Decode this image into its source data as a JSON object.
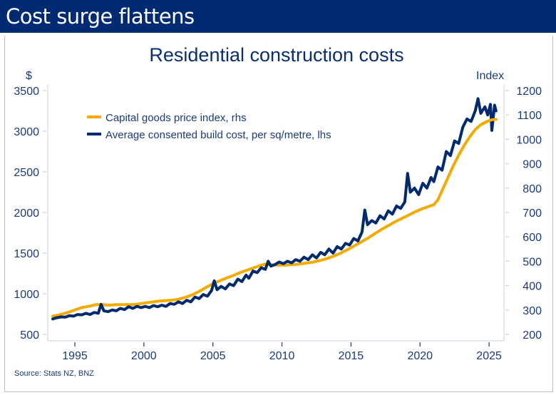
{
  "banner": {
    "title": "Cost surge flattens"
  },
  "colors": {
    "banner": "#002b73",
    "gold": "#f2ab00",
    "navy": "#002a6e",
    "axis": "#c8d0dc",
    "text": "#1a3a78"
  },
  "source": "Source: Stats NZ, BNZ",
  "chart_data": {
    "type": "line",
    "title": "Residential construction costs",
    "xlabel": "",
    "ylabel_left": "$",
    "ylabel_right": "Index",
    "x_range": [
      1993.0,
      2026.2
    ],
    "x_ticks": [
      1995,
      2000,
      2005,
      2010,
      2015,
      2020,
      2025
    ],
    "x_tick_labels": [
      "1995",
      "2000",
      "2005",
      "2010",
      "2015",
      "2020",
      "2025"
    ],
    "ylim_left": [
      500,
      3500
    ],
    "y_ticks_left": [
      500,
      1000,
      1500,
      2000,
      2500,
      3000,
      3500
    ],
    "y_tick_labels_left": [
      "500",
      "1000",
      "1500",
      "2000",
      "2500",
      "3000",
      "3500"
    ],
    "ylim_right": [
      200,
      1200
    ],
    "y_ticks_right": [
      200,
      300,
      400,
      500,
      600,
      700,
      800,
      900,
      1000,
      1100,
      1200
    ],
    "y_tick_labels_right": [
      "200",
      "300",
      "400",
      "500",
      "600",
      "700",
      "800",
      "900",
      "1000",
      "1100",
      "1200"
    ],
    "grid": false,
    "legend": {
      "placement": "top-left",
      "entries": [
        "Capital goods price index, rhs",
        "Average consented build cost, per sq/metre, lhs"
      ]
    },
    "series": [
      {
        "name": "Capital goods price index, rhs",
        "axis": "right",
        "color": "#f2ab00",
        "points": [
          [
            1993.4,
            275
          ],
          [
            1994.0,
            282
          ],
          [
            1994.5,
            290
          ],
          [
            1995.0,
            300
          ],
          [
            1995.5,
            310
          ],
          [
            1996.0,
            315
          ],
          [
            1996.5,
            322
          ],
          [
            1997.0,
            322
          ],
          [
            1997.5,
            320
          ],
          [
            1998.0,
            322
          ],
          [
            1998.5,
            322
          ],
          [
            1999.0,
            322
          ],
          [
            1999.5,
            324
          ],
          [
            2000.0,
            328
          ],
          [
            2000.5,
            332
          ],
          [
            2001.0,
            336
          ],
          [
            2001.5,
            338
          ],
          [
            2002.0,
            340
          ],
          [
            2002.5,
            344
          ],
          [
            2003.0,
            352
          ],
          [
            2003.5,
            362
          ],
          [
            2004.0,
            376
          ],
          [
            2004.5,
            392
          ],
          [
            2005.0,
            408
          ],
          [
            2005.5,
            420
          ],
          [
            2006.0,
            432
          ],
          [
            2006.5,
            442
          ],
          [
            2007.0,
            454
          ],
          [
            2007.5,
            464
          ],
          [
            2008.0,
            474
          ],
          [
            2008.5,
            484
          ],
          [
            2008.8,
            488
          ],
          [
            2009.2,
            486
          ],
          [
            2009.7,
            484
          ],
          [
            2010.2,
            484
          ],
          [
            2010.7,
            486
          ],
          [
            2011.2,
            488
          ],
          [
            2011.7,
            492
          ],
          [
            2012.2,
            496
          ],
          [
            2012.7,
            502
          ],
          [
            2013.2,
            510
          ],
          [
            2013.7,
            520
          ],
          [
            2014.2,
            532
          ],
          [
            2014.7,
            546
          ],
          [
            2015.2,
            562
          ],
          [
            2015.7,
            578
          ],
          [
            2016.2,
            594
          ],
          [
            2016.7,
            612
          ],
          [
            2017.2,
            630
          ],
          [
            2017.7,
            646
          ],
          [
            2018.2,
            662
          ],
          [
            2018.7,
            676
          ],
          [
            2019.2,
            690
          ],
          [
            2019.7,
            704
          ],
          [
            2020.2,
            716
          ],
          [
            2020.7,
            726
          ],
          [
            2021.0,
            732
          ],
          [
            2021.3,
            752
          ],
          [
            2021.6,
            790
          ],
          [
            2022.0,
            840
          ],
          [
            2022.4,
            890
          ],
          [
            2022.8,
            935
          ],
          [
            2023.2,
            975
          ],
          [
            2023.6,
            1010
          ],
          [
            2024.0,
            1040
          ],
          [
            2024.4,
            1060
          ],
          [
            2024.8,
            1072
          ],
          [
            2025.2,
            1080
          ],
          [
            2025.5,
            1082
          ]
        ]
      },
      {
        "name": "Average consented build cost, per sq/metre, lhs",
        "axis": "left",
        "color": "#002a6e",
        "points": [
          [
            1993.4,
            690
          ],
          [
            1993.7,
            705
          ],
          [
            1994.0,
            715
          ],
          [
            1994.3,
            712
          ],
          [
            1994.6,
            730
          ],
          [
            1994.9,
            725
          ],
          [
            1995.2,
            745
          ],
          [
            1995.5,
            740
          ],
          [
            1995.8,
            760
          ],
          [
            1996.1,
            745
          ],
          [
            1996.4,
            770
          ],
          [
            1996.7,
            760
          ],
          [
            1996.9,
            870
          ],
          [
            1997.1,
            790
          ],
          [
            1997.4,
            780
          ],
          [
            1997.7,
            800
          ],
          [
            1998.0,
            790
          ],
          [
            1998.3,
            820
          ],
          [
            1998.6,
            805
          ],
          [
            1998.9,
            840
          ],
          [
            1999.2,
            820
          ],
          [
            1999.5,
            845
          ],
          [
            1999.8,
            830
          ],
          [
            2000.1,
            845
          ],
          [
            2000.4,
            830
          ],
          [
            2000.7,
            855
          ],
          [
            2001.0,
            840
          ],
          [
            2001.3,
            860
          ],
          [
            2001.6,
            845
          ],
          [
            2001.9,
            880
          ],
          [
            2002.2,
            870
          ],
          [
            2002.5,
            900
          ],
          [
            2002.8,
            880
          ],
          [
            2003.1,
            920
          ],
          [
            2003.4,
            900
          ],
          [
            2003.7,
            960
          ],
          [
            2004.0,
            940
          ],
          [
            2004.3,
            990
          ],
          [
            2004.6,
            970
          ],
          [
            2004.9,
            1040
          ],
          [
            2005.1,
            1160
          ],
          [
            2005.3,
            1050
          ],
          [
            2005.6,
            1090
          ],
          [
            2005.9,
            1060
          ],
          [
            2006.2,
            1120
          ],
          [
            2006.5,
            1100
          ],
          [
            2006.8,
            1180
          ],
          [
            2007.1,
            1150
          ],
          [
            2007.4,
            1230
          ],
          [
            2007.6,
            1190
          ],
          [
            2007.9,
            1280
          ],
          [
            2008.2,
            1260
          ],
          [
            2008.5,
            1320
          ],
          [
            2008.8,
            1300
          ],
          [
            2009.0,
            1400
          ],
          [
            2009.2,
            1340
          ],
          [
            2009.5,
            1360
          ],
          [
            2009.8,
            1390
          ],
          [
            2010.1,
            1370
          ],
          [
            2010.4,
            1400
          ],
          [
            2010.7,
            1380
          ],
          [
            2011.0,
            1420
          ],
          [
            2011.3,
            1400
          ],
          [
            2011.6,
            1450
          ],
          [
            2011.9,
            1420
          ],
          [
            2012.2,
            1480
          ],
          [
            2012.5,
            1440
          ],
          [
            2012.8,
            1510
          ],
          [
            2013.1,
            1480
          ],
          [
            2013.4,
            1550
          ],
          [
            2013.7,
            1500
          ],
          [
            2014.0,
            1580
          ],
          [
            2014.3,
            1550
          ],
          [
            2014.6,
            1620
          ],
          [
            2014.9,
            1600
          ],
          [
            2015.2,
            1680
          ],
          [
            2015.5,
            1650
          ],
          [
            2015.8,
            1760
          ],
          [
            2016.0,
            2030
          ],
          [
            2016.2,
            1850
          ],
          [
            2016.5,
            1900
          ],
          [
            2016.8,
            1870
          ],
          [
            2017.1,
            1960
          ],
          [
            2017.4,
            1920
          ],
          [
            2017.7,
            2020
          ],
          [
            2018.0,
            1980
          ],
          [
            2018.3,
            2080
          ],
          [
            2018.6,
            2050
          ],
          [
            2018.9,
            2130
          ],
          [
            2019.1,
            2480
          ],
          [
            2019.3,
            2250
          ],
          [
            2019.6,
            2300
          ],
          [
            2019.9,
            2220
          ],
          [
            2020.2,
            2360
          ],
          [
            2020.5,
            2300
          ],
          [
            2020.8,
            2430
          ],
          [
            2021.0,
            2380
          ],
          [
            2021.3,
            2560
          ],
          [
            2021.6,
            2520
          ],
          [
            2021.9,
            2750
          ],
          [
            2022.2,
            2700
          ],
          [
            2022.5,
            2880
          ],
          [
            2022.8,
            2850
          ],
          [
            2023.1,
            3050
          ],
          [
            2023.4,
            3150
          ],
          [
            2023.7,
            3120
          ],
          [
            2024.0,
            3250
          ],
          [
            2024.2,
            3400
          ],
          [
            2024.4,
            3220
          ],
          [
            2024.7,
            3300
          ],
          [
            2024.9,
            3200
          ],
          [
            2025.1,
            3330
          ],
          [
            2025.2,
            3010
          ],
          [
            2025.4,
            3320
          ],
          [
            2025.5,
            3250
          ]
        ]
      }
    ]
  }
}
